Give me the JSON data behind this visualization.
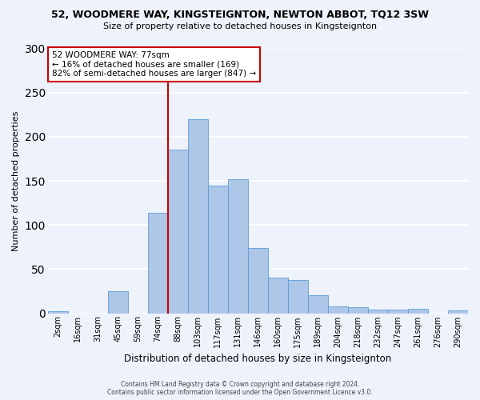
{
  "title": "52, WOODMERE WAY, KINGSTEIGNTON, NEWTON ABBOT, TQ12 3SW",
  "subtitle": "Size of property relative to detached houses in Kingsteignton",
  "xlabel": "Distribution of detached houses by size in Kingsteignton",
  "ylabel": "Number of detached properties",
  "footnote": "Contains HM Land Registry data © Crown copyright and database right 2024.\nContains public sector information licensed under the Open Government Licence v3.0.",
  "bin_labels": [
    "2sqm",
    "16sqm",
    "31sqm",
    "45sqm",
    "59sqm",
    "74sqm",
    "88sqm",
    "103sqm",
    "117sqm",
    "131sqm",
    "146sqm",
    "160sqm",
    "175sqm",
    "189sqm",
    "204sqm",
    "218sqm",
    "232sqm",
    "247sqm",
    "261sqm",
    "276sqm",
    "290sqm"
  ],
  "bar_values": [
    2,
    0,
    0,
    25,
    0,
    114,
    185,
    220,
    145,
    152,
    74,
    40,
    38,
    20,
    8,
    7,
    4,
    4,
    5,
    0,
    3
  ],
  "bar_color": "#aec6e8",
  "bar_edge_color": "#5a9fd4",
  "vline_x_index": 5.5,
  "vline_color": "#cc0000",
  "annotation_text": "52 WOODMERE WAY: 77sqm\n← 16% of detached houses are smaller (169)\n82% of semi-detached houses are larger (847) →",
  "annotation_box_color": "#ffffff",
  "annotation_box_edge": "#cc0000",
  "ylim": [
    0,
    300
  ],
  "yticks": [
    0,
    50,
    100,
    150,
    200,
    250,
    300
  ],
  "background_color": "#eef2fa",
  "plot_background": "#eef2fa",
  "grid_color": "#ffffff",
  "title_fontsize": 9,
  "subtitle_fontsize": 8
}
